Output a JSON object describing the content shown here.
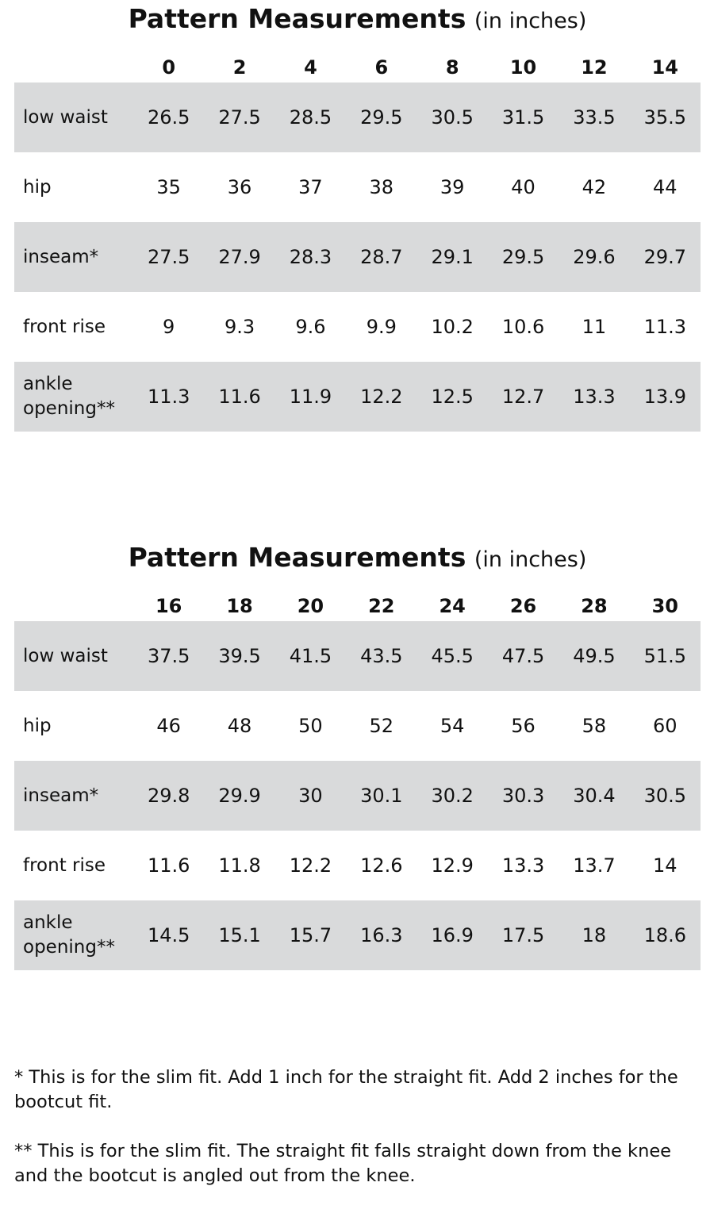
{
  "tables": [
    {
      "title_bold": "Pattern Measurements",
      "title_unit": "(in inches)",
      "sizes": [
        "0",
        "2",
        "4",
        "6",
        "8",
        "10",
        "12",
        "14"
      ],
      "rows": [
        {
          "label": "low waist",
          "values": [
            "26.5",
            "27.5",
            "28.5",
            "29.5",
            "30.5",
            "31.5",
            "33.5",
            "35.5"
          ]
        },
        {
          "label": "hip",
          "values": [
            "35",
            "36",
            "37",
            "38",
            "39",
            "40",
            "42",
            "44"
          ]
        },
        {
          "label": "inseam*",
          "values": [
            "27.5",
            "27.9",
            "28.3",
            "28.7",
            "29.1",
            "29.5",
            "29.6",
            "29.7"
          ]
        },
        {
          "label": "front rise",
          "values": [
            "9",
            "9.3",
            "9.6",
            "9.9",
            "10.2",
            "10.6",
            "11",
            "11.3"
          ]
        },
        {
          "label_line1": "ankle",
          "label_line2": "opening**",
          "values": [
            "11.3",
            "11.6",
            "11.9",
            "12.2",
            "12.5",
            "12.7",
            "13.3",
            "13.9"
          ]
        }
      ]
    },
    {
      "title_bold": "Pattern Measurements",
      "title_unit": "(in inches)",
      "sizes": [
        "16",
        "18",
        "20",
        "22",
        "24",
        "26",
        "28",
        "30"
      ],
      "rows": [
        {
          "label": "low waist",
          "values": [
            "37.5",
            "39.5",
            "41.5",
            "43.5",
            "45.5",
            "47.5",
            "49.5",
            "51.5"
          ]
        },
        {
          "label": "hip",
          "values": [
            "46",
            "48",
            "50",
            "52",
            "54",
            "56",
            "58",
            "60"
          ]
        },
        {
          "label": "inseam*",
          "values": [
            "29.8",
            "29.9",
            "30",
            "30.1",
            "30.2",
            "30.3",
            "30.4",
            "30.5"
          ]
        },
        {
          "label": "front rise",
          "values": [
            "11.6",
            "11.8",
            "12.2",
            "12.6",
            "12.9",
            "13.3",
            "13.7",
            "14"
          ]
        },
        {
          "label_line1": "ankle",
          "label_line2": "opening**",
          "values": [
            "14.5",
            "15.1",
            "15.7",
            "16.3",
            "16.9",
            "17.5",
            "18",
            "18.6"
          ]
        }
      ]
    }
  ],
  "notes": {
    "note1": "* This is for the slim fit.  Add 1 inch for the straight fit.  Add 2 inches for the bootcut fit.",
    "note2": "** This is for the slim fit.  The straight fit falls straight down from the knee and the bootcut is angled out from the knee."
  },
  "colors": {
    "row_shade": "#d9dadb",
    "text": "#111111"
  }
}
